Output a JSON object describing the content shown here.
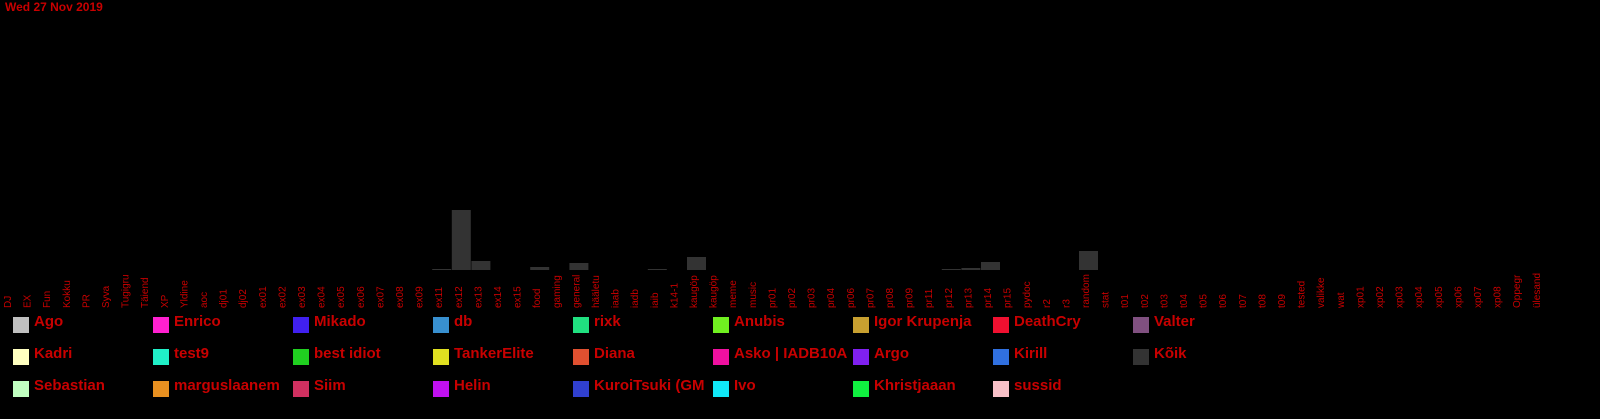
{
  "header": {
    "date": "Wed 27 Nov 2019"
  },
  "chart_data": {
    "type": "bar",
    "stacked": true,
    "title": "",
    "xlabel": "",
    "ylabel": "",
    "categories": [
      "DJ",
      "EX",
      "Fun",
      "Kokku",
      "PR",
      "Syva",
      "Tugigru",
      "Täiend",
      "XP",
      "Yldine",
      "aoc",
      "dj01",
      "dj02",
      "ex01",
      "ex02",
      "ex03",
      "ex04",
      "ex05",
      "ex06",
      "ex07",
      "ex08",
      "ex09",
      "ex11",
      "ex12",
      "ex13",
      "ex14",
      "ex15",
      "food",
      "gaming",
      "general",
      "hääletu",
      "iaab",
      "iadb",
      "iaib",
      "k14-1",
      "kaugöp",
      "kaugöp",
      "meme",
      "music",
      "pr01",
      "pr02",
      "pr03",
      "pr04",
      "pr06",
      "pr07",
      "pr08",
      "pr09",
      "pr11",
      "pr12",
      "pr13",
      "pr14",
      "pr15",
      "pydoc",
      "r2",
      "r3",
      "random",
      "stat",
      "t01",
      "t02",
      "t03",
      "t04",
      "t05",
      "t06",
      "t07",
      "t08",
      "t09",
      "tested",
      "valikke",
      "wat",
      "xp01",
      "xp02",
      "xp03",
      "xp04",
      "xp05",
      "xp06",
      "xp07",
      "xp08",
      "Oppegr",
      "ülesand"
    ],
    "series": [
      {
        "name": "Kõik",
        "color": "#333333",
        "values": [
          0,
          0,
          0,
          0,
          0,
          0,
          0,
          0,
          0,
          0,
          0,
          0,
          0,
          0,
          0,
          0,
          0,
          0,
          0,
          0,
          0,
          0,
          1,
          60,
          9,
          0,
          0,
          3,
          0,
          7,
          0,
          0,
          0,
          1,
          0,
          13,
          0,
          0,
          0,
          0,
          0,
          0,
          0,
          0,
          0,
          0,
          0,
          0,
          1,
          2,
          8,
          0,
          0,
          0,
          0,
          19,
          0,
          0,
          0,
          0,
          0,
          0,
          0,
          0,
          0,
          0,
          0,
          0,
          0,
          0,
          0,
          0,
          0,
          0,
          0,
          0,
          0,
          0,
          0
        ]
      }
    ],
    "legend_position": "bottom",
    "legend": [
      {
        "name": "Ago",
        "color": "#c0c0c0"
      },
      {
        "name": "Kadri",
        "color": "#ffffc0"
      },
      {
        "name": "Sebastian",
        "color": "#c0ffc0"
      },
      {
        "name": "Enrico",
        "color": "#ff20d0"
      },
      {
        "name": "test9",
        "color": "#20f0c8"
      },
      {
        "name": "marguslaanem",
        "color": "#e89020"
      },
      {
        "name": "Mikado",
        "color": "#4020f0"
      },
      {
        "name": "best idiot",
        "color": "#20d020"
      },
      {
        "name": "Siim",
        "color": "#d03060"
      },
      {
        "name": "db",
        "color": "#3890d0"
      },
      {
        "name": "TankerElite",
        "color": "#e0e020"
      },
      {
        "name": "Helin",
        "color": "#c010f0"
      },
      {
        "name": "rixk",
        "color": "#20e080"
      },
      {
        "name": "Diana",
        "color": "#e05030"
      },
      {
        "name": "KuroiTsuki (GM",
        "color": "#3040d0"
      },
      {
        "name": "Anubis",
        "color": "#70f020"
      },
      {
        "name": "Asko | IADB10A",
        "color": "#f010a0"
      },
      {
        "name": "Ivo",
        "color": "#10e8f8"
      },
      {
        "name": "Igor Krupenja",
        "color": "#c8a030"
      },
      {
        "name": "Argo",
        "color": "#8020f0"
      },
      {
        "name": "Khristjaaan",
        "color": "#10f040"
      },
      {
        "name": "DeathCry",
        "color": "#f01030"
      },
      {
        "name": "Kirill",
        "color": "#3070e0"
      },
      {
        "name": "sussid",
        "color": "#f8c0c8"
      },
      {
        "name": "Valter",
        "color": "#805080"
      },
      {
        "name": "Kõik",
        "color": "#333333"
      }
    ]
  }
}
